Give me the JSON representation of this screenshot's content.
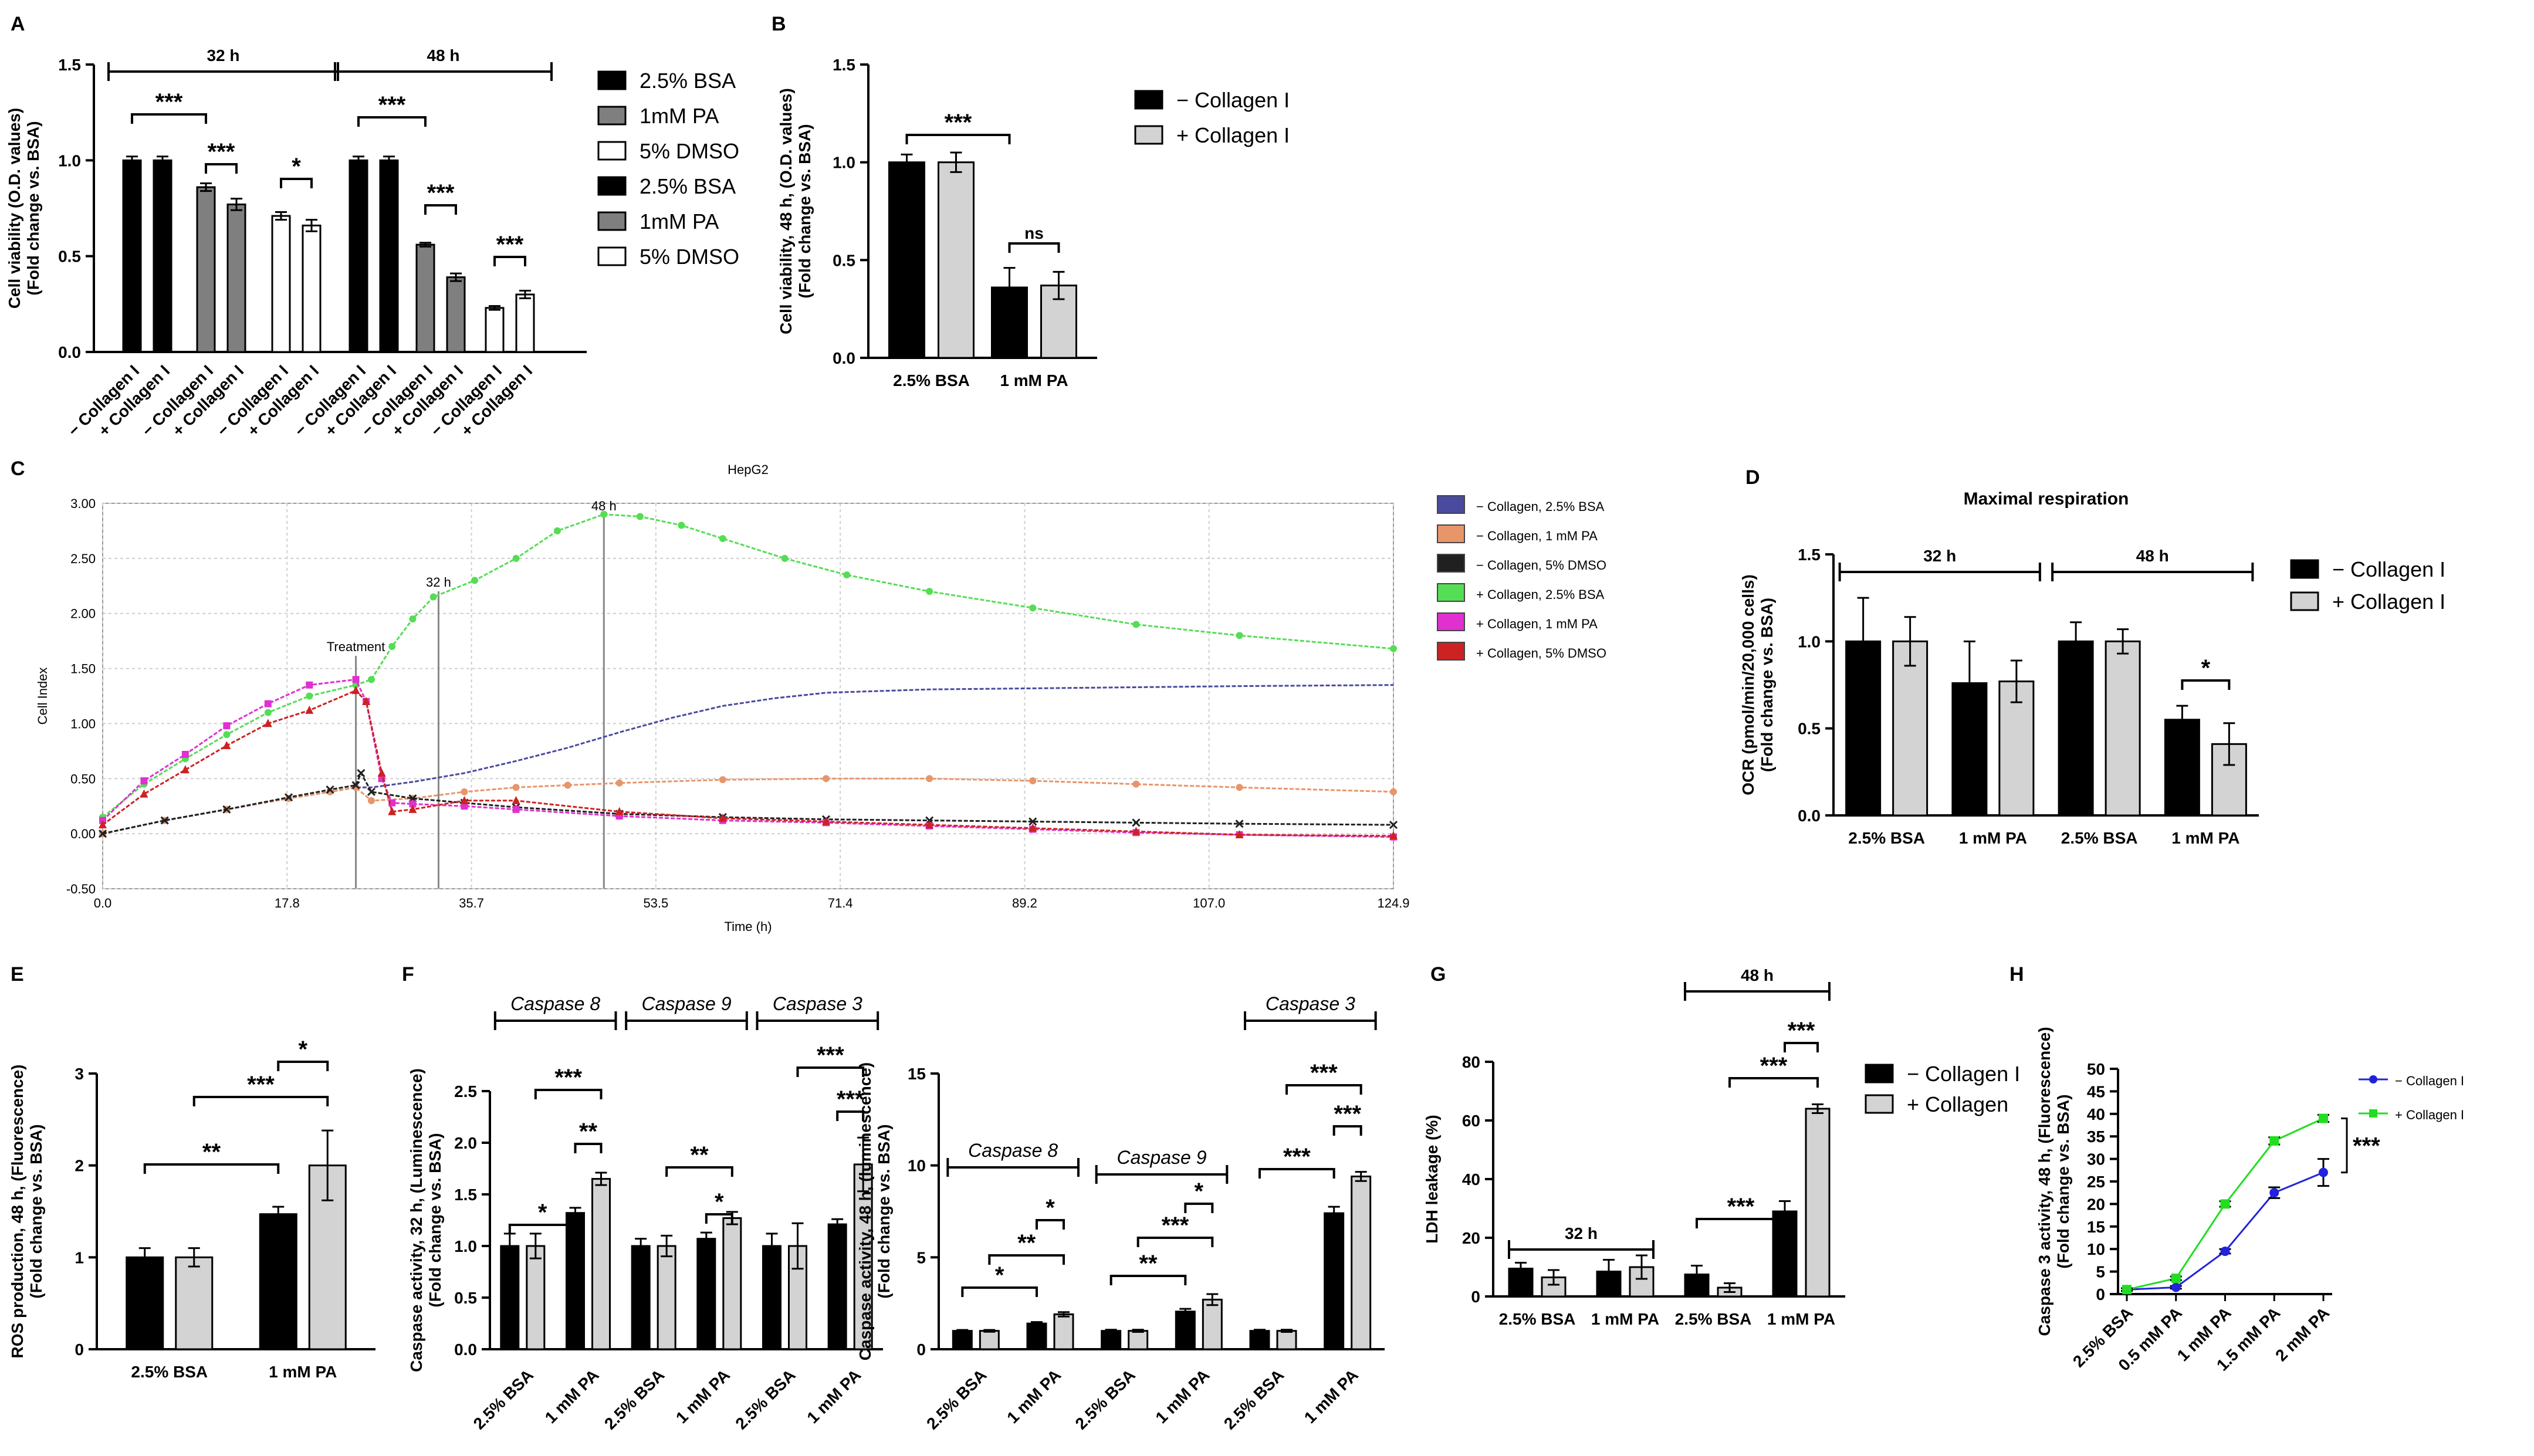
{
  "colors": {
    "black": "#000000",
    "gray": "#7f7f7f",
    "lightgray": "#d3d3d3",
    "white": "#ffffff",
    "rt_blue": "#4a4a9e",
    "rt_orange": "#e8956a",
    "rt_black": "#202020",
    "rt_green": "#55dd55",
    "rt_magenta": "#e030d0",
    "rt_red": "#cc2222",
    "h_blue": "#2222dd",
    "h_green": "#22dd22"
  },
  "chart_data": [
    {
      "id": "A",
      "type": "bar",
      "panel_label": "A",
      "ylabel": "Cell viability (O.D. values)\n(Fold change vs. BSA)",
      "ylim": [
        0,
        1.5
      ],
      "yticks": [
        "0.0",
        "0.5",
        "1.0",
        "1.5"
      ],
      "categories": [
        "− Collagen I",
        "+ Collagen I",
        "− Collagen I",
        "+ Collagen I",
        "− Collagen I",
        "+ Collagen I",
        "− Collagen I",
        "+ Collagen I",
        "− Collagen I",
        "+ Collagen I",
        "− Collagen I",
        "+ Collagen I"
      ],
      "values": [
        1.0,
        1.0,
        0.86,
        0.77,
        0.71,
        0.66,
        1.0,
        1.0,
        0.56,
        0.39,
        0.23,
        0.3
      ],
      "errors": [
        0.02,
        0.02,
        0.02,
        0.03,
        0.02,
        0.03,
        0.02,
        0.02,
        0.01,
        0.02,
        0.01,
        0.02
      ],
      "fills": [
        "black",
        "black",
        "gray",
        "gray",
        "white",
        "white",
        "black",
        "black",
        "gray",
        "gray",
        "white",
        "white"
      ],
      "groups": [
        {
          "label": "32 h",
          "from": 0,
          "to": 5
        },
        {
          "label": "48 h",
          "from": 6,
          "to": 11
        }
      ],
      "significance": [
        {
          "from": 0,
          "to": 2,
          "label": "***"
        },
        {
          "from": 2,
          "to": 3,
          "label": "***"
        },
        {
          "from": 4,
          "to": 5,
          "label": "*"
        },
        {
          "from": 6,
          "to": 8,
          "label": "***"
        },
        {
          "from": 8,
          "to": 9,
          "label": "***"
        },
        {
          "from": 10,
          "to": 11,
          "label": "***"
        }
      ],
      "legend": [
        {
          "label": "2.5% BSA",
          "fill": "black"
        },
        {
          "label": "1mM PA",
          "fill": "gray"
        },
        {
          "label": "5% DMSO",
          "fill": "white"
        },
        {
          "label": "2.5% BSA",
          "fill": "black"
        },
        {
          "label": "1mM PA",
          "fill": "gray"
        },
        {
          "label": "5% DMSO",
          "fill": "white"
        }
      ]
    },
    {
      "id": "B",
      "type": "bar",
      "panel_label": "B",
      "ylabel": "Cell viability, 48 h, (O.D. values)\n(Fold change vs. BSA)",
      "ylim": [
        0,
        1.5
      ],
      "yticks": [
        "0.0",
        "0.5",
        "1.0",
        "1.5"
      ],
      "categories": [
        "2.5% BSA",
        "1 mM PA"
      ],
      "series": [
        {
          "name": "− Collagen I",
          "fill": "black",
          "values": [
            1.0,
            0.36
          ],
          "errors": [
            0.04,
            0.1
          ]
        },
        {
          "name": "+ Collagen I",
          "fill": "lightgray",
          "values": [
            1.0,
            0.37
          ],
          "errors": [
            0.05,
            0.07
          ]
        }
      ],
      "significance": [
        {
          "from": 0,
          "to": 2,
          "label": "***"
        },
        {
          "from": 2,
          "to": 3,
          "label": "ns"
        }
      ]
    },
    {
      "id": "C",
      "type": "line",
      "panel_label": "C",
      "title": "HepG2",
      "xlabel": "Time (h)",
      "ylabel": "Cell Index",
      "xlim": [
        0,
        124.9
      ],
      "ylim": [
        -0.5,
        3.0
      ],
      "xticks": [
        "0.0",
        "17.8",
        "35.7",
        "53.5",
        "71.4",
        "89.2",
        "107.0",
        "124.9"
      ],
      "yticks": [
        "-0.50",
        "0.00",
        "0.50",
        "1.00",
        "1.50",
        "2.00",
        "2.50",
        "3.00"
      ],
      "annotations": [
        {
          "label": "Treatment",
          "x": 24.5
        },
        {
          "label": "32 h",
          "x": 32.5
        },
        {
          "label": "48 h",
          "x": 48.5
        }
      ],
      "series": [
        {
          "name": "− Collagen, 2.5% BSA",
          "color": "rt_blue",
          "marker": "none",
          "x": [
            0,
            6,
            12,
            18,
            22,
            24.5,
            26,
            30,
            35,
            40,
            45,
            50,
            55,
            60,
            65,
            70,
            80,
            90,
            100,
            110,
            124.9
          ],
          "y": [
            0.0,
            0.12,
            0.22,
            0.32,
            0.38,
            0.42,
            0.42,
            0.47,
            0.55,
            0.66,
            0.78,
            0.92,
            1.05,
            1.16,
            1.23,
            1.28,
            1.31,
            1.32,
            1.33,
            1.34,
            1.35
          ]
        },
        {
          "name": "− Collagen, 1 mM PA",
          "color": "rt_orange",
          "marker": "circle",
          "x": [
            0,
            6,
            12,
            18,
            22,
            24.5,
            26,
            30,
            35,
            40,
            45,
            50,
            60,
            70,
            80,
            90,
            100,
            110,
            124.9
          ],
          "y": [
            0.0,
            0.12,
            0.22,
            0.32,
            0.38,
            0.42,
            0.3,
            0.32,
            0.38,
            0.42,
            0.44,
            0.46,
            0.49,
            0.5,
            0.5,
            0.48,
            0.45,
            0.42,
            0.38
          ]
        },
        {
          "name": "− Collagen, 5% DMSO",
          "color": "rt_black",
          "marker": "x",
          "x": [
            0,
            6,
            12,
            18,
            22,
            24.5,
            25,
            26,
            30,
            35,
            40,
            50,
            60,
            70,
            80,
            90,
            100,
            110,
            124.9
          ],
          "y": [
            0.0,
            0.12,
            0.22,
            0.33,
            0.4,
            0.44,
            0.55,
            0.38,
            0.32,
            0.28,
            0.24,
            0.18,
            0.15,
            0.13,
            0.12,
            0.11,
            0.1,
            0.09,
            0.08
          ]
        },
        {
          "name": "+ Collagen, 2.5% BSA",
          "color": "rt_green",
          "marker": "circle",
          "x": [
            0,
            4,
            8,
            12,
            16,
            20,
            24.5,
            26,
            28,
            30,
            32,
            36,
            40,
            44,
            48.5,
            52,
            56,
            60,
            66,
            72,
            80,
            90,
            100,
            110,
            124.9
          ],
          "y": [
            0.15,
            0.45,
            0.68,
            0.9,
            1.1,
            1.25,
            1.35,
            1.4,
            1.7,
            1.95,
            2.15,
            2.3,
            2.5,
            2.75,
            2.9,
            2.88,
            2.8,
            2.68,
            2.5,
            2.35,
            2.2,
            2.05,
            1.9,
            1.8,
            1.68
          ]
        },
        {
          "name": "+ Collagen, 1 mM PA",
          "color": "rt_magenta",
          "marker": "square",
          "x": [
            0,
            4,
            8,
            12,
            16,
            20,
            24.5,
            25.5,
            27,
            28,
            30,
            35,
            40,
            50,
            60,
            70,
            80,
            90,
            100,
            110,
            124.9
          ],
          "y": [
            0.12,
            0.48,
            0.72,
            0.98,
            1.18,
            1.35,
            1.4,
            1.2,
            0.5,
            0.28,
            0.27,
            0.25,
            0.22,
            0.16,
            0.12,
            0.1,
            0.07,
            0.04,
            0.01,
            -0.01,
            -0.03
          ]
        },
        {
          "name": "+ Collagen, 5% DMSO",
          "color": "rt_red",
          "marker": "triangle",
          "x": [
            0,
            4,
            8,
            12,
            16,
            20,
            24.5,
            25.5,
            27,
            28,
            30,
            35,
            40,
            50,
            60,
            70,
            80,
            90,
            100,
            110,
            124.9
          ],
          "y": [
            0.08,
            0.36,
            0.58,
            0.8,
            1.0,
            1.12,
            1.3,
            1.2,
            0.55,
            0.2,
            0.22,
            0.3,
            0.3,
            0.2,
            0.14,
            0.11,
            0.08,
            0.05,
            0.02,
            -0.01,
            -0.02
          ]
        }
      ]
    },
    {
      "id": "D",
      "type": "bar",
      "panel_label": "D",
      "title": "Maximal respiration",
      "ylabel": "OCR (pmol/min/20,000 cells)\n(Fold change vs. BSA)",
      "ylim": [
        0,
        1.5
      ],
      "yticks": [
        "0.0",
        "0.5",
        "1.0",
        "1.5"
      ],
      "categories": [
        "2.5% BSA",
        "1 mM PA",
        "2.5% BSA",
        "1 mM PA"
      ],
      "series": [
        {
          "name": "− Collagen I",
          "fill": "black",
          "values": [
            1.0,
            0.76,
            1.0,
            0.55
          ],
          "errors": [
            0.25,
            0.24,
            0.11,
            0.08
          ]
        },
        {
          "name": "+ Collagen I",
          "fill": "lightgray",
          "values": [
            1.0,
            0.77,
            1.0,
            0.41
          ],
          "errors": [
            0.14,
            0.12,
            0.07,
            0.12
          ]
        }
      ],
      "groups": [
        {
          "label": "32 h",
          "from": 0,
          "to": 3
        },
        {
          "label": "48 h",
          "from": 4,
          "to": 7
        }
      ],
      "significance": [
        {
          "from": 6,
          "to": 7,
          "label": "*"
        }
      ]
    },
    {
      "id": "E",
      "type": "bar",
      "panel_label": "E",
      "ylabel": "ROS production, 48 h, (Fluorescence)\n(Fold change vs. BSA)",
      "ylim": [
        0,
        3
      ],
      "yticks": [
        "0",
        "1",
        "2",
        "3"
      ],
      "categories": [
        "2.5% BSA",
        "1 mM PA"
      ],
      "series": [
        {
          "name": "− Collagen I",
          "fill": "black",
          "values": [
            1.0,
            1.47
          ],
          "errors": [
            0.1,
            0.08
          ]
        },
        {
          "name": "+ Collagen I",
          "fill": "lightgray",
          "values": [
            1.0,
            2.0
          ],
          "errors": [
            0.1,
            0.38
          ]
        }
      ],
      "significance": [
        {
          "from": 0,
          "to": 2,
          "label": "**"
        },
        {
          "from": 1,
          "to": 3,
          "label": "***"
        },
        {
          "from": 2,
          "to": 3,
          "label": "*"
        }
      ]
    },
    {
      "id": "F1",
      "type": "bar",
      "panel_label": "F",
      "ylabel": "Caspase activity, 32 h, (Luminescence)\n(Fold change vs. BSA)",
      "ylim": [
        0,
        2.5
      ],
      "yticks": [
        "0.0",
        "0.5",
        "1.0",
        "1.5",
        "2.0",
        "2.5"
      ],
      "categories": [
        "2.5% BSA",
        "1 mM PA",
        "2.5% BSA",
        "1 mM PA",
        "2.5% BSA",
        "1 mM PA"
      ],
      "series": [
        {
          "name": "− Collagen I",
          "fill": "black",
          "values": [
            1.0,
            1.32,
            1.0,
            1.07,
            1.0,
            1.21
          ],
          "errors": [
            0.12,
            0.05,
            0.07,
            0.06,
            0.12,
            0.05
          ]
        },
        {
          "name": "+ Collagen I",
          "fill": "lightgray",
          "values": [
            1.0,
            1.65,
            1.0,
            1.27,
            1.0,
            1.79
          ],
          "errors": [
            0.12,
            0.06,
            0.1,
            0.06,
            0.22,
            0.26
          ]
        }
      ],
      "groups": [
        {
          "label": "Caspase 8",
          "from": 0,
          "to": 3
        },
        {
          "label": "Caspase 9",
          "from": 4,
          "to": 7
        },
        {
          "label": "Caspase 3",
          "from": 8,
          "to": 11
        }
      ],
      "significance": [
        {
          "from": 0,
          "to": 2,
          "label": "*"
        },
        {
          "from": 2,
          "to": 3,
          "label": "**"
        },
        {
          "from": 1,
          "to": 3,
          "label": "***"
        },
        {
          "from": 6,
          "to": 7,
          "label": "*"
        },
        {
          "from": 5,
          "to": 7,
          "label": "**"
        },
        {
          "from": 10,
          "to": 11,
          "label": "***"
        },
        {
          "from": 9,
          "to": 11,
          "label": "***"
        }
      ]
    },
    {
      "id": "F2",
      "type": "bar",
      "panel_label": "",
      "ylabel": "Caspase activity, 48 h, (luminescence)\n(Fold change vs. BSA)",
      "ylim": [
        0,
        15
      ],
      "yticks": [
        "0",
        "5",
        "10",
        "15"
      ],
      "categories": [
        "2.5% BSA",
        "1 mM PA",
        "2.5% BSA",
        "1 mM PA",
        "2.5% BSA",
        "1 mM PA"
      ],
      "series": [
        {
          "name": "− Collagen I",
          "fill": "black",
          "values": [
            1.0,
            1.4,
            1.0,
            2.05,
            1.0,
            7.4
          ],
          "errors": [
            0.05,
            0.08,
            0.06,
            0.15,
            0.06,
            0.35
          ]
        },
        {
          "name": "+ Collagen I",
          "fill": "lightgray",
          "values": [
            1.0,
            1.9,
            1.0,
            2.7,
            1.0,
            9.4
          ],
          "errors": [
            0.05,
            0.12,
            0.06,
            0.3,
            0.06,
            0.25
          ]
        }
      ],
      "groups": [
        {
          "label": "Caspase 8",
          "from": 0,
          "to": 3
        },
        {
          "label": "Caspase 9",
          "from": 4,
          "to": 7
        },
        {
          "label": "Caspase 3",
          "from": 8,
          "to": 11
        }
      ],
      "significance": [
        {
          "from": 0,
          "to": 2,
          "label": "*"
        },
        {
          "from": 1,
          "to": 3,
          "label": "**"
        },
        {
          "from": 2,
          "to": 3,
          "label": "*"
        },
        {
          "from": 4,
          "to": 6,
          "label": "**"
        },
        {
          "from": 5,
          "to": 7,
          "label": "***"
        },
        {
          "from": 6,
          "to": 7,
          "label": "*"
        },
        {
          "from": 8,
          "to": 10,
          "label": "***"
        },
        {
          "from": 10,
          "to": 11,
          "label": "***"
        },
        {
          "from": 9,
          "to": 11,
          "label": "***"
        }
      ]
    },
    {
      "id": "G",
      "type": "bar",
      "panel_label": "G",
      "ylabel": "LDH leakage (%)",
      "ylim": [
        0,
        80
      ],
      "yticks": [
        "0",
        "20",
        "40",
        "60",
        "80"
      ],
      "categories": [
        "2.5% BSA",
        "1 mM PA",
        "2.5% BSA",
        "1 mM PA"
      ],
      "series": [
        {
          "name": "− Collagen I",
          "fill": "black",
          "values": [
            9.5,
            8.5,
            7.5,
            29
          ],
          "errors": [
            2,
            4,
            3,
            3.5
          ]
        },
        {
          "name": "+ Collagen",
          "fill": "lightgray",
          "values": [
            6.5,
            10,
            3,
            64
          ],
          "errors": [
            2.5,
            4,
            1.5,
            1.5
          ]
        }
      ],
      "groups": [
        {
          "label": "32 h",
          "from": 0,
          "to": 3
        },
        {
          "label": "48 h",
          "from": 4,
          "to": 7
        }
      ],
      "significance": [
        {
          "from": 4,
          "to": 6,
          "label": "***"
        },
        {
          "from": 5,
          "to": 7,
          "label": "***"
        },
        {
          "from": 6,
          "to": 7,
          "label": "***"
        }
      ]
    },
    {
      "id": "H",
      "type": "line",
      "panel_label": "H",
      "ylabel": "Caspase 3 activity, 48 h, (Fluorescence)\n(Fold change vs. BSA)",
      "ylim": [
        0,
        50
      ],
      "yticks": [
        "0",
        "5",
        "10",
        "15",
        "20",
        "25",
        "30",
        "35",
        "40",
        "45",
        "50"
      ],
      "categories": [
        "2.5% BSA",
        "0.5 mM PA",
        "1 mM PA",
        "1.5 mM PA",
        "2 mM PA"
      ],
      "series": [
        {
          "name": "− Collagen I",
          "color": "h_blue",
          "values": [
            1.0,
            1.5,
            9.5,
            22.5,
            27
          ],
          "errors": [
            0.3,
            0.3,
            0.5,
            1.2,
            3
          ]
        },
        {
          "name": "+ Collagen I",
          "color": "h_green",
          "values": [
            1.0,
            3.5,
            20,
            34,
            39
          ],
          "errors": [
            0.3,
            0.4,
            0.6,
            0.8,
            0.8
          ]
        }
      ],
      "significance": [
        {
          "label": "***"
        }
      ]
    }
  ]
}
